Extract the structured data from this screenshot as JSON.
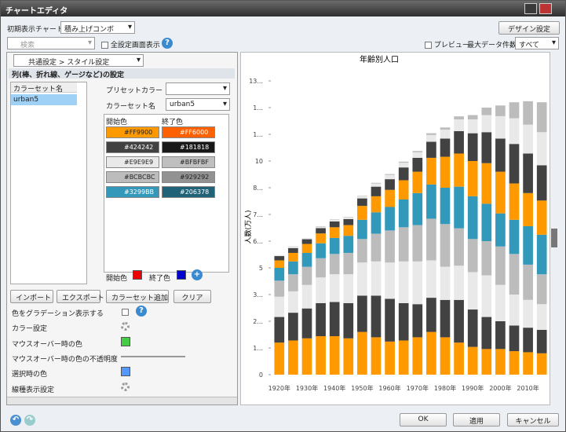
{
  "window": {
    "title": "チャートエディタ"
  },
  "toolbar": {
    "initial_chart_label": "初期表示チャート",
    "initial_chart_value": "積み上げコンボ",
    "design_button": "デザイン設定",
    "search_placeholder": "検索",
    "show_all_label": "全設定画面表示",
    "preview_label": "プレビュー",
    "max_rows_label": "最大データ件数",
    "max_rows_value": "すべて"
  },
  "panel": {
    "tab": "共通設定 > スタイル設定",
    "section": "列(棒、折れ線、ゲージなど)の設定",
    "colorset_header": "カラーセット名",
    "colorsets": [
      "urban5"
    ],
    "preset_label": "プリセットカラー",
    "name_label": "カラーセット名",
    "name_value": "urban5",
    "color_table": {
      "headers": [
        "開始色",
        "終了色"
      ],
      "rows": [
        [
          "#FF9900",
          "#FF6000"
        ],
        [
          "#424242",
          "#181818"
        ],
        [
          "#E9E9E9",
          "#BFBFBF"
        ],
        [
          "#BCBCBC",
          "#929292"
        ],
        [
          "#3299BB",
          "#206378"
        ]
      ]
    },
    "start_label": "開始色",
    "end_label": "終了色",
    "buttons": [
      "インポート",
      "エクスポート",
      "カラーセット追加",
      "クリア"
    ],
    "properties": [
      "色をグラデーション表示する",
      "カラー設定",
      "マウスオーバー時の色",
      "マウスオーバー時の色の不透明度",
      "選択時の色",
      "線種表示設定"
    ]
  },
  "footer": {
    "buttons": [
      "OK",
      "適用",
      "キャンセル"
    ]
  },
  "chart_data": {
    "type": "stacked_bar",
    "title": "年齢別人口",
    "y_label": "人数(万人)",
    "categories": [
      "1920年",
      null,
      "1930年",
      null,
      "1940年",
      null,
      "1950年",
      null,
      "1960年",
      null,
      "1970年",
      null,
      "1980年",
      null,
      "1990年",
      null,
      "2000年",
      null,
      "2010年",
      null
    ],
    "ylim": [
      0,
      13.75
    ],
    "yticks": [
      0,
      {
        "value": 1.25,
        "label": "1..."
      },
      {
        "value": 2.5,
        "label": "2..."
      },
      {
        "value": 3.75,
        "label": "3..."
      },
      5,
      {
        "value": 6.25,
        "label": "6..."
      },
      {
        "value": 7.5,
        "label": "7..."
      },
      {
        "value": 8.75,
        "label": "8..."
      },
      10,
      {
        "value": 11.25,
        "label": "1..."
      },
      {
        "value": 12.5,
        "label": "1..."
      },
      {
        "value": 13.75,
        "label": "13..."
      }
    ],
    "grid": false,
    "series": [
      {
        "color": "#FF9900",
        "values": [
          1.5,
          1.6,
          1.7,
          1.8,
          1.8,
          1.7,
          2.0,
          1.75,
          1.55,
          1.6,
          1.75,
          2.0,
          1.75,
          1.5,
          1.3,
          1.2,
          1.2,
          1.1,
          1.05,
          1.0
        ]
      },
      {
        "color": "#424242",
        "values": [
          1.2,
          1.3,
          1.4,
          1.55,
          1.6,
          1.65,
          1.7,
          1.95,
          2.0,
          1.75,
          1.55,
          1.6,
          1.75,
          2.0,
          1.75,
          1.5,
          1.3,
          1.2,
          1.15,
          1.1
        ]
      },
      {
        "color": "#E9E9E9",
        "values": [
          0.95,
          1.0,
          1.1,
          1.2,
          1.3,
          1.35,
          1.55,
          1.6,
          1.7,
          1.95,
          2.0,
          1.75,
          1.55,
          1.6,
          1.75,
          1.95,
          1.7,
          1.45,
          1.3,
          1.2
        ]
      },
      {
        "color": "#BCBCBC",
        "values": [
          0.75,
          0.8,
          0.85,
          0.9,
          0.95,
          1.0,
          1.1,
          1.3,
          1.5,
          1.6,
          1.7,
          1.95,
          2.0,
          1.75,
          1.55,
          1.6,
          1.8,
          1.9,
          1.65,
          1.4
        ]
      },
      {
        "color": "#3299BB",
        "values": [
          0.6,
          0.6,
          0.65,
          0.7,
          0.75,
          0.8,
          0.9,
          1.0,
          1.1,
          1.3,
          1.5,
          1.6,
          1.7,
          1.95,
          2.0,
          1.75,
          1.55,
          1.6,
          1.8,
          1.85
        ]
      },
      {
        "color": "#FF9900",
        "values": [
          0.35,
          0.4,
          0.42,
          0.46,
          0.5,
          0.5,
          0.65,
          0.75,
          0.8,
          0.9,
          1.0,
          1.25,
          1.45,
          1.55,
          1.65,
          1.9,
          1.95,
          1.7,
          1.55,
          1.6
        ]
      },
      {
        "color": "#424242",
        "values": [
          0.2,
          0.22,
          0.22,
          0.25,
          0.27,
          0.28,
          0.35,
          0.45,
          0.5,
          0.6,
          0.65,
          0.75,
          0.85,
          1.05,
          1.3,
          1.45,
          1.55,
          1.85,
          1.85,
          1.65
        ]
      },
      {
        "color": "#E9E9E9",
        "values": [
          0.05,
          0.06,
          0.06,
          0.07,
          0.08,
          0.08,
          0.1,
          0.15,
          0.2,
          0.22,
          0.26,
          0.32,
          0.42,
          0.55,
          0.65,
          0.8,
          1.05,
          1.2,
          1.35,
          1.55
        ]
      },
      {
        "color": "#BCBCBC",
        "values": [
          0.0,
          0.02,
          0.0,
          0.02,
          0.02,
          0.02,
          0.02,
          0.03,
          0.04,
          0.05,
          0.06,
          0.08,
          0.1,
          0.14,
          0.2,
          0.35,
          0.5,
          0.75,
          1.1,
          1.4
        ]
      }
    ]
  }
}
